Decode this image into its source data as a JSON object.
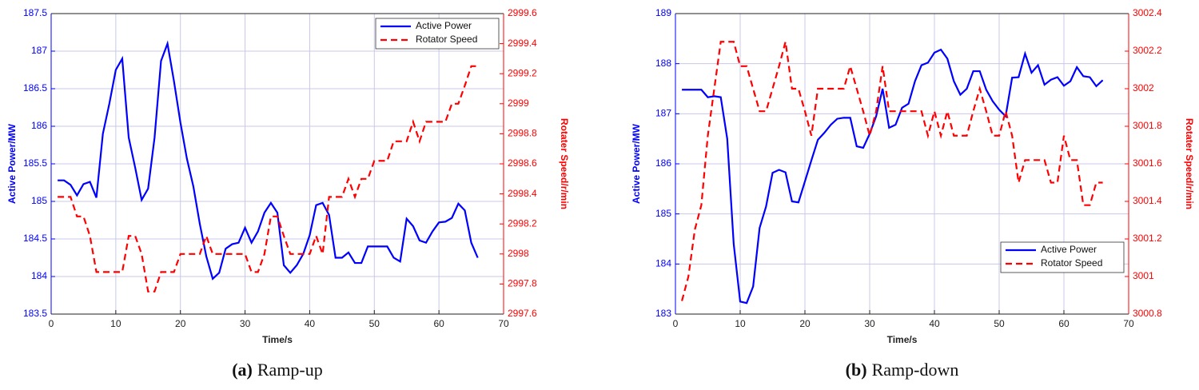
{
  "chart_data": [
    {
      "type": "line",
      "caption_label": "(a)",
      "caption": "Ramp-up",
      "xlabel": "Time/s",
      "ylabel": "Active Power/MW",
      "y2label": "Rotater Speed/r/min",
      "x": [
        1,
        2,
        3,
        4,
        5,
        6,
        7,
        8,
        9,
        10,
        11,
        12,
        13,
        14,
        15,
        16,
        17,
        18,
        19,
        20,
        21,
        22,
        23,
        24,
        25,
        26,
        27,
        28,
        29,
        30,
        31,
        32,
        33,
        34,
        35,
        36,
        37,
        38,
        39,
        40,
        41,
        42,
        43,
        44,
        45,
        46,
        47,
        48,
        49,
        50,
        51,
        52,
        53,
        54,
        55,
        56,
        57,
        58,
        59,
        60,
        61,
        62,
        63,
        64,
        65,
        66
      ],
      "series": [
        {
          "name": "Active Power",
          "color": "#0000ff",
          "line_style": "solid",
          "axis": "y",
          "values": [
            185.28,
            185.28,
            185.22,
            185.08,
            185.23,
            185.26,
            185.05,
            185.9,
            186.3,
            186.75,
            186.9,
            185.85,
            185.45,
            185.02,
            185.17,
            185.85,
            186.87,
            187.1,
            186.6,
            186.05,
            185.57,
            185.2,
            184.7,
            184.27,
            183.97,
            184.05,
            184.37,
            184.43,
            184.45,
            184.65,
            184.45,
            184.6,
            184.85,
            184.98,
            184.85,
            184.15,
            184.05,
            184.15,
            184.3,
            184.55,
            184.95,
            184.98,
            184.82,
            184.25,
            184.25,
            184.32,
            184.18,
            184.18,
            184.4,
            184.4,
            184.4,
            184.4,
            184.25,
            184.2,
            184.77,
            184.67,
            184.48,
            184.45,
            184.6,
            184.72,
            184.73,
            184.78,
            184.97,
            184.88,
            184.45,
            184.25
          ]
        },
        {
          "name": "Rotator Speed",
          "color": "#ff0000",
          "line_style": "dashed",
          "axis": "y2",
          "values": [
            2998.38,
            2998.38,
            2998.38,
            2998.25,
            2998.25,
            2998.12,
            2997.88,
            2997.88,
            2997.88,
            2997.88,
            2997.88,
            2998.12,
            2998.12,
            2998,
            2997.75,
            2997.75,
            2997.88,
            2997.88,
            2997.88,
            2998,
            2998,
            2998,
            2998,
            2998.12,
            2998,
            2998,
            2998,
            2998,
            2998,
            2998,
            2997.88,
            2997.88,
            2998,
            2998.25,
            2998.25,
            2998.12,
            2998,
            2998,
            2998,
            2998,
            2998.12,
            2998,
            2998.38,
            2998.38,
            2998.38,
            2998.5,
            2998.38,
            2998.5,
            2998.5,
            2998.62,
            2998.62,
            2998.62,
            2998.75,
            2998.75,
            2998.75,
            2998.88,
            2998.75,
            2998.88,
            2998.88,
            2998.88,
            2998.88,
            2999,
            2999,
            2999.12,
            2999.25,
            2999.25
          ]
        }
      ],
      "xlim": [
        0,
        70
      ],
      "xticks": [
        0,
        10,
        20,
        30,
        40,
        50,
        60,
        70
      ],
      "ylim": [
        183.5,
        187.5
      ],
      "yticks": [
        183.5,
        184,
        184.5,
        185,
        185.5,
        186,
        186.5,
        187,
        187.5
      ],
      "y2lim": [
        2997.6,
        2999.6
      ],
      "y2ticks": [
        2997.6,
        2997.8,
        2998,
        2998.2,
        2998.4,
        2998.6,
        2998.8,
        2999,
        2999.2,
        2999.4,
        2999.6
      ],
      "grid": true,
      "legend": "upper right"
    },
    {
      "type": "line",
      "caption_label": "(b)",
      "caption": "Ramp-down",
      "xlabel": "Time/s",
      "ylabel": "Active Power/MW",
      "y2label": "Rotater Speed/r/min",
      "x": [
        1,
        2,
        3,
        4,
        5,
        6,
        7,
        8,
        9,
        10,
        11,
        12,
        13,
        14,
        15,
        16,
        17,
        18,
        19,
        20,
        21,
        22,
        23,
        24,
        25,
        26,
        27,
        28,
        29,
        30,
        31,
        32,
        33,
        34,
        35,
        36,
        37,
        38,
        39,
        40,
        41,
        42,
        43,
        44,
        45,
        46,
        47,
        48,
        49,
        50,
        51,
        52,
        53,
        54,
        55,
        56,
        57,
        58,
        59,
        60,
        61,
        62,
        63,
        64,
        65,
        66
      ],
      "series": [
        {
          "name": "Active Power",
          "color": "#0000ff",
          "line_style": "solid",
          "axis": "y",
          "values": [
            187.48,
            187.48,
            187.48,
            187.48,
            187.33,
            187.35,
            187.33,
            186.5,
            184.4,
            183.25,
            183.22,
            183.55,
            184.72,
            185.15,
            185.82,
            185.88,
            185.83,
            185.25,
            185.23,
            185.65,
            186.07,
            186.48,
            186.62,
            186.78,
            186.9,
            186.92,
            186.92,
            186.35,
            186.32,
            186.6,
            186.95,
            187.5,
            186.72,
            186.78,
            187.12,
            187.2,
            187.65,
            187.97,
            188.02,
            188.22,
            188.28,
            188.1,
            187.65,
            187.38,
            187.5,
            187.85,
            187.85,
            187.48,
            187.25,
            187.08,
            186.95,
            187.72,
            187.73,
            188.2,
            187.82,
            187.97,
            187.58,
            187.68,
            187.73,
            187.56,
            187.65,
            187.93,
            187.75,
            187.73,
            187.55,
            187.67
          ]
        },
        {
          "name": "Rotator Speed",
          "color": "#ff0000",
          "line_style": "dashed",
          "axis": "y2",
          "values": [
            3000.87,
            3001,
            3001.25,
            3001.38,
            3001.75,
            3002,
            3002.25,
            3002.25,
            3002.25,
            3002.12,
            3002.12,
            3002,
            3001.88,
            3001.88,
            3002,
            3002.12,
            3002.25,
            3002,
            3002,
            3001.88,
            3001.75,
            3002,
            3002,
            3002,
            3002,
            3002,
            3002.12,
            3002,
            3001.88,
            3001.75,
            3001.88,
            3002.12,
            3001.88,
            3001.88,
            3001.88,
            3001.88,
            3001.88,
            3001.88,
            3001.75,
            3001.88,
            3001.75,
            3001.88,
            3001.75,
            3001.75,
            3001.75,
            3001.88,
            3002,
            3001.88,
            3001.75,
            3001.75,
            3001.88,
            3001.75,
            3001.5,
            3001.62,
            3001.62,
            3001.62,
            3001.62,
            3001.5,
            3001.5,
            3001.75,
            3001.62,
            3001.62,
            3001.38,
            3001.38,
            3001.5,
            3001.5
          ]
        }
      ],
      "xlim": [
        0,
        70
      ],
      "xticks": [
        0,
        10,
        20,
        30,
        40,
        50,
        60,
        70
      ],
      "ylim": [
        183,
        189
      ],
      "yticks": [
        183,
        184,
        185,
        186,
        187,
        188,
        189
      ],
      "y2lim": [
        3000.8,
        3002.4
      ],
      "y2ticks": [
        3000.8,
        3001,
        3001.2,
        3001.4,
        3001.6,
        3001.8,
        3002,
        3002.2,
        3002.4
      ],
      "grid": true,
      "legend": "lower right"
    }
  ]
}
